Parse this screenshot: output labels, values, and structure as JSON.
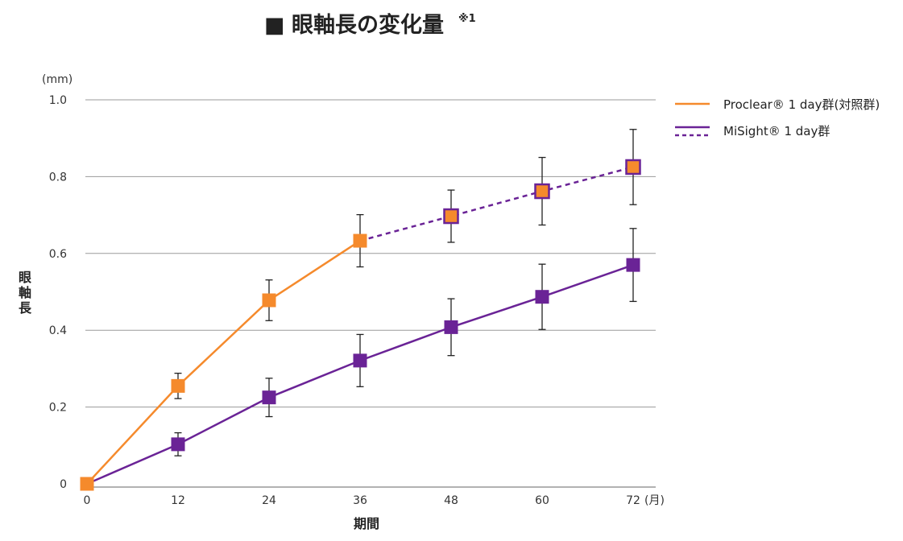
{
  "chart_data": {
    "type": "line",
    "title": "眼軸長の変化量",
    "title_note": "※1",
    "title_marker": "■",
    "ylabel": "眼軸長",
    "yunit": "(mm)",
    "xlabel": "期間",
    "xunit": "(月)",
    "ylim": [
      0,
      1.0
    ],
    "xlim": [
      0,
      72
    ],
    "x": [
      0,
      12,
      24,
      36,
      48,
      60,
      72
    ],
    "xticks": [
      "0",
      "12",
      "24",
      "36",
      "48",
      "60",
      "72"
    ],
    "yticks": [
      {
        "value": 0,
        "label": "0"
      },
      {
        "value": 0.2,
        "label": "0.2"
      },
      {
        "value": 0.4,
        "label": "0.4"
      },
      {
        "value": 0.6,
        "label": "0.6"
      },
      {
        "value": 0.8,
        "label": "0.8"
      },
      {
        "value": 1.0,
        "label": "1.0"
      }
    ],
    "grid": true,
    "legend_position": "top-right",
    "series": [
      {
        "name": "Proclear® 1 day群(対照群)",
        "color": "#f58a2c",
        "marker": "square",
        "x": [
          0,
          12,
          24,
          36
        ],
        "values": [
          0,
          0.255,
          0.478,
          0.633
        ],
        "error": [
          0,
          0.033,
          0.053,
          0.068
        ]
      },
      {
        "name": "MiSight® 1 day群",
        "color": "#6a2396",
        "marker": "square",
        "x": [
          0,
          12,
          24,
          36,
          48,
          60,
          72
        ],
        "values": [
          0,
          0.103,
          0.225,
          0.321,
          0.408,
          0.487,
          0.57
        ],
        "error": [
          0,
          0.03,
          0.05,
          0.068,
          0.074,
          0.085,
          0.095
        ]
      },
      {
        "legend_style": "dashed",
        "color": "#6a2396",
        "fill": "#f58a2c",
        "marker": "square",
        "x": [
          36,
          48,
          60,
          72
        ],
        "values": [
          0.633,
          0.697,
          0.762,
          0.825
        ],
        "error": [
          0,
          0.068,
          0.088,
          0.098
        ]
      }
    ]
  }
}
